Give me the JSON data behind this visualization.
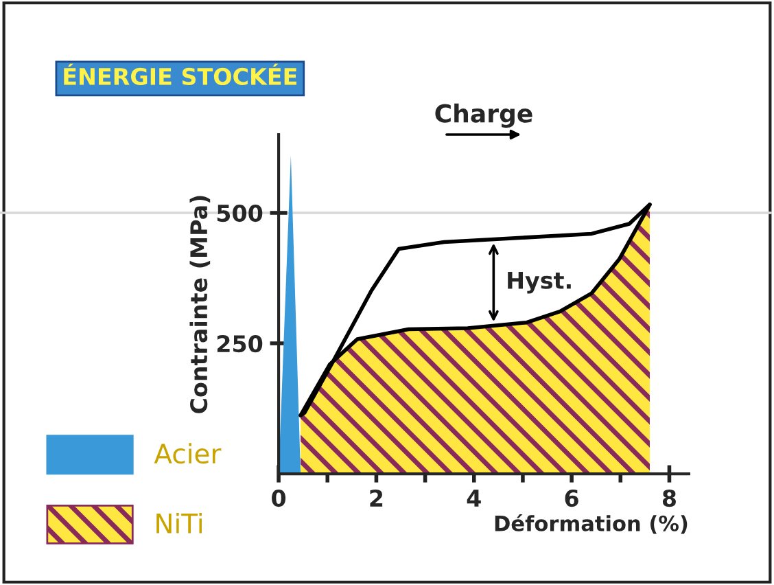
{
  "chart_data": {
    "type": "area",
    "title": "ÉNERGIE STOCKÉE",
    "xlabel": "Déformation (%)",
    "ylabel": "Contrainte (MPa)",
    "series": [
      {
        "name": "Acier",
        "color": "#3a9ad9",
        "x": [
          0,
          0.25,
          0.45
        ],
        "values": [
          0,
          610,
          0
        ]
      },
      {
        "name": "NiTi",
        "color": "#ffe640",
        "x": [
          0.45,
          1.05,
          1.61,
          2.66,
          3.87,
          5.08,
          5.76,
          6.41,
          6.98,
          7.6
        ],
        "values": [
          112,
          210,
          258,
          277,
          279,
          290,
          311,
          346,
          412,
          516
        ]
      },
      {
        "type": "line",
        "color": "#000000",
        "x": [
          0.45,
          0.53,
          1.13,
          1.9,
          2.46,
          3.39,
          4.35,
          6.41,
          7.18,
          7.6
        ],
        "values": [
          112,
          117,
          218,
          351,
          431,
          444,
          449,
          460,
          479,
          516
        ]
      }
    ],
    "xlim": [
      0,
      8.4
    ],
    "xticks": [
      0,
      {
        "value": 1,
        "label": null
      },
      2,
      {
        "value": 3,
        "label": null
      },
      4,
      {
        "value": 5,
        "label": null
      },
      6,
      {
        "value": 7,
        "label": null
      },
      8
    ],
    "ylim": [
      0,
      650
    ],
    "yticks": [
      250,
      500
    ],
    "ref_lines": [
      {
        "axis": "y",
        "value": 500,
        "color": "#d8d8d8"
      }
    ],
    "annotations": [
      "Charge",
      "Hyst."
    ],
    "legend": "bottom left",
    "grid": false,
    "marker": "none"
  }
}
